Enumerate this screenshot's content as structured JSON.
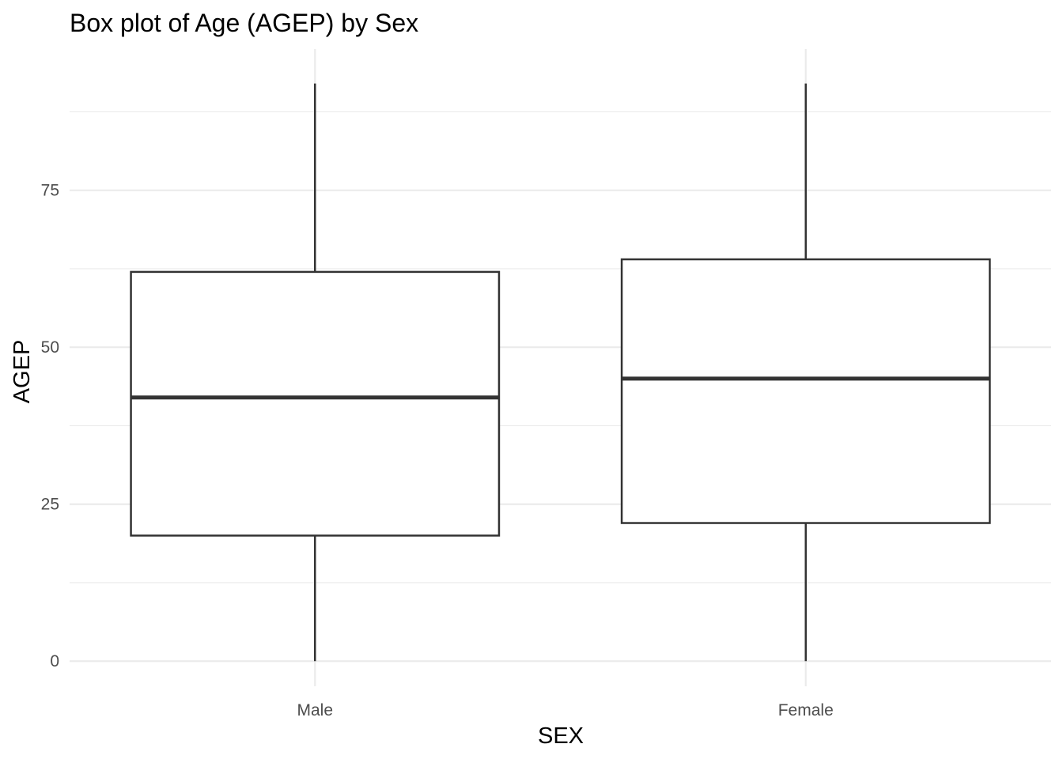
{
  "chart_data": {
    "type": "boxplot",
    "title": "Box plot of Age (AGEP) by Sex",
    "xlabel": "SEX",
    "ylabel": "AGEP",
    "categories": [
      "Male",
      "Female"
    ],
    "boxes": [
      {
        "category": "Male",
        "min": 0,
        "q1": 20,
        "median": 42,
        "q3": 62,
        "max": 92
      },
      {
        "category": "Female",
        "min": 0,
        "q1": 22,
        "median": 45,
        "q3": 64,
        "max": 92
      }
    ],
    "yticks": [
      0,
      25,
      50,
      75
    ],
    "yticks_labels": [
      "0",
      "25",
      "50",
      "75"
    ],
    "ylim": [
      -4,
      97.5
    ],
    "grid": true,
    "colors": {
      "box_stroke": "#333333",
      "box_fill": "#ffffff",
      "grid_major": "#ebebeb",
      "grid_minor": "#ebebeb",
      "tick_text": "#4d4d4d"
    }
  }
}
